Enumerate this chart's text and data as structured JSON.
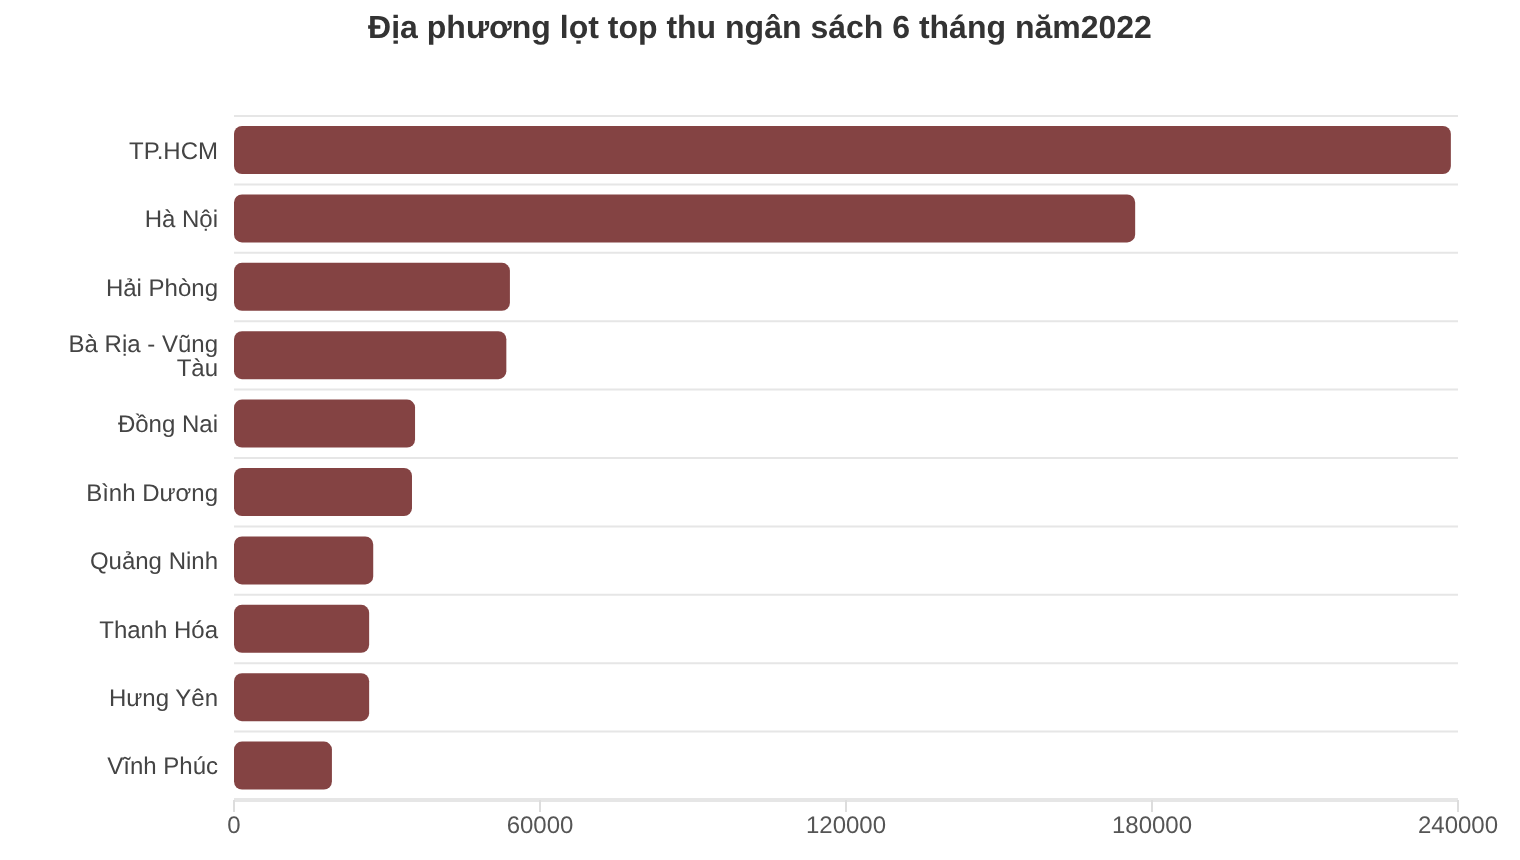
{
  "chart_data": {
    "type": "bar",
    "orientation": "horizontal",
    "title": "Địa phương lọt top thu ngân sách 6 tháng năm2022",
    "categories": [
      "TP.HCM",
      "Hà Nội",
      "Hải Phòng",
      "Bà Rịa - Vũng Tàu",
      "Đồng Nai",
      "Bình Dương",
      "Quảng Ninh",
      "Thanh Hóa",
      "Hưng Yên",
      "Vĩnh Phúc"
    ],
    "values": [
      238600,
      176700,
      54100,
      53400,
      35500,
      34900,
      27300,
      26500,
      26500,
      19200
    ],
    "color": "#844343",
    "xlim": [
      0,
      240000
    ],
    "xticks": [
      0,
      60000,
      120000,
      180000,
      240000
    ],
    "grid": "y"
  }
}
